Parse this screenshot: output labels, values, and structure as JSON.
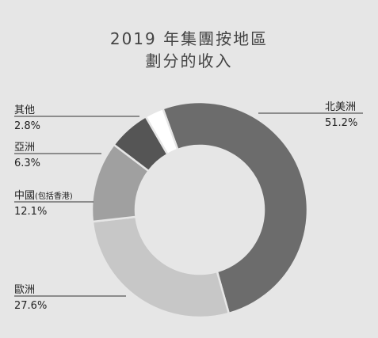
{
  "chart_data": {
    "type": "pie",
    "title_line1": "2019 年集團按地區",
    "title_line2": "劃分的收入",
    "unit": "%",
    "slices": [
      {
        "label": "北美洲",
        "value": 51.2,
        "display": "51.2%",
        "color": "#6c6c6c"
      },
      {
        "label": "歐洲",
        "value": 27.6,
        "display": "27.6%",
        "color": "#c7c7c7"
      },
      {
        "label": "中國",
        "label_note": "(包括香港)",
        "value": 12.1,
        "display": "12.1%",
        "color": "#a0a0a0"
      },
      {
        "label": "亞洲",
        "value": 6.3,
        "display": "6.3%",
        "color": "#555555"
      },
      {
        "label": "其他",
        "value": 2.8,
        "display": "2.8%",
        "color": "#ffffff"
      }
    ]
  }
}
